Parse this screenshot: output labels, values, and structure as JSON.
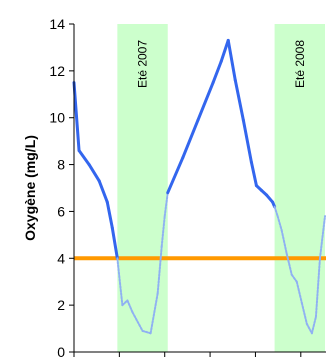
{
  "chart_data": {
    "type": "line",
    "title": "",
    "xlabel": "",
    "ylabel": "Oxygène (mg/L)",
    "ylim": [
      0,
      14
    ],
    "yticks": [
      0,
      2,
      4,
      6,
      8,
      10,
      12,
      14
    ],
    "xlim": [
      0,
      250
    ],
    "x_tick_marks": [
      0,
      45,
      90,
      135,
      180,
      225
    ],
    "grid": false,
    "legend": "none",
    "threshold": {
      "value": 4,
      "color": "#ff9900"
    },
    "shaded_periods": [
      {
        "label": "Eté 2007",
        "x_start": 43,
        "x_end": 93,
        "color": "#ccffcc"
      },
      {
        "label": "Eté 2008",
        "x_start": 199,
        "x_end": 249,
        "color": "#ccffcc"
      }
    ],
    "series": [
      {
        "color": "#3366ee",
        "x": [
          0,
          5,
          15,
          25,
          33,
          38,
          43,
          48,
          53,
          58,
          68,
          76,
          83,
          87,
          90,
          93,
          108,
          123,
          138,
          146,
          153,
          160,
          168,
          176,
          181,
          186,
          191,
          197,
          199,
          202,
          206,
          211,
          216,
          221,
          226,
          231,
          236,
          240,
          244,
          249
        ],
        "y": [
          11.5,
          8.6,
          8.0,
          7.3,
          6.4,
          5.3,
          4.0,
          2.0,
          2.2,
          1.7,
          0.9,
          0.8,
          2.5,
          4.5,
          5.8,
          6.8,
          8.3,
          9.9,
          11.5,
          12.4,
          13.3,
          11.6,
          9.9,
          8.1,
          7.1,
          6.9,
          6.7,
          6.4,
          6.2,
          5.8,
          5.2,
          4.2,
          3.3,
          3.0,
          2.1,
          1.2,
          0.8,
          1.5,
          4.0,
          5.8
        ]
      }
    ]
  }
}
